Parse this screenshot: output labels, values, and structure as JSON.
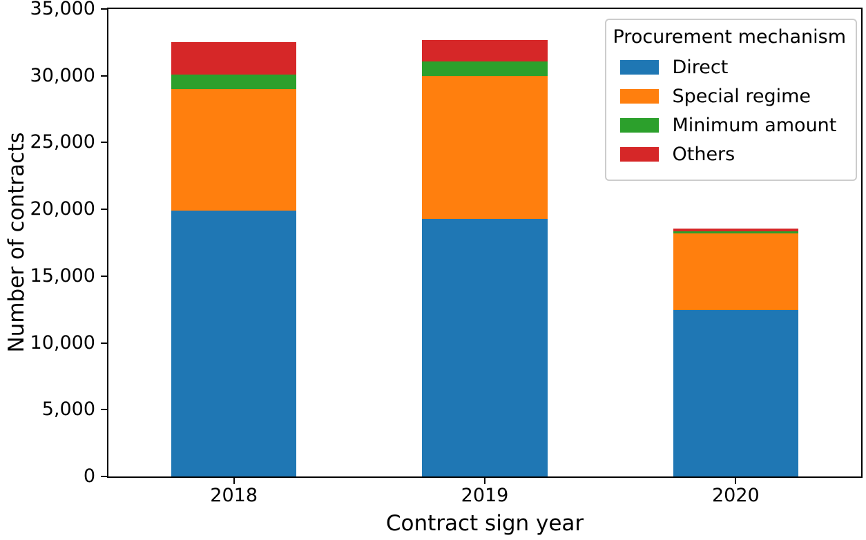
{
  "chart_data": {
    "type": "bar",
    "stacked": true,
    "title": "",
    "xlabel": "Contract sign year",
    "ylabel": "Number of contracts",
    "categories": [
      "2018",
      "2019",
      "2020"
    ],
    "series": [
      {
        "name": "Direct",
        "color": "#1f77b4",
        "values": [
          19900,
          19300,
          12450
        ]
      },
      {
        "name": "Special regime",
        "color": "#ff7f0e",
        "values": [
          9100,
          10700,
          5750
        ]
      },
      {
        "name": "Minimum amount",
        "color": "#2ca02c",
        "values": [
          1100,
          1050,
          150
        ]
      },
      {
        "name": "Others",
        "color": "#d62728",
        "values": [
          2400,
          1600,
          200
        ]
      }
    ],
    "totals": [
      32500,
      32650,
      18550
    ],
    "ylim": [
      0,
      35000
    ],
    "yticks": [
      0,
      5000,
      10000,
      15000,
      20000,
      25000,
      30000,
      35000
    ],
    "ytick_labels": [
      "0",
      "5,000",
      "10,000",
      "15,000",
      "20,000",
      "25,000",
      "30,000",
      "35,000"
    ],
    "legend": {
      "title": "Procurement mechanism",
      "position": "upper right"
    },
    "grid": false,
    "bar_width_fraction": 0.5,
    "spine_color": "#000000",
    "background_color": "#ffffff"
  }
}
